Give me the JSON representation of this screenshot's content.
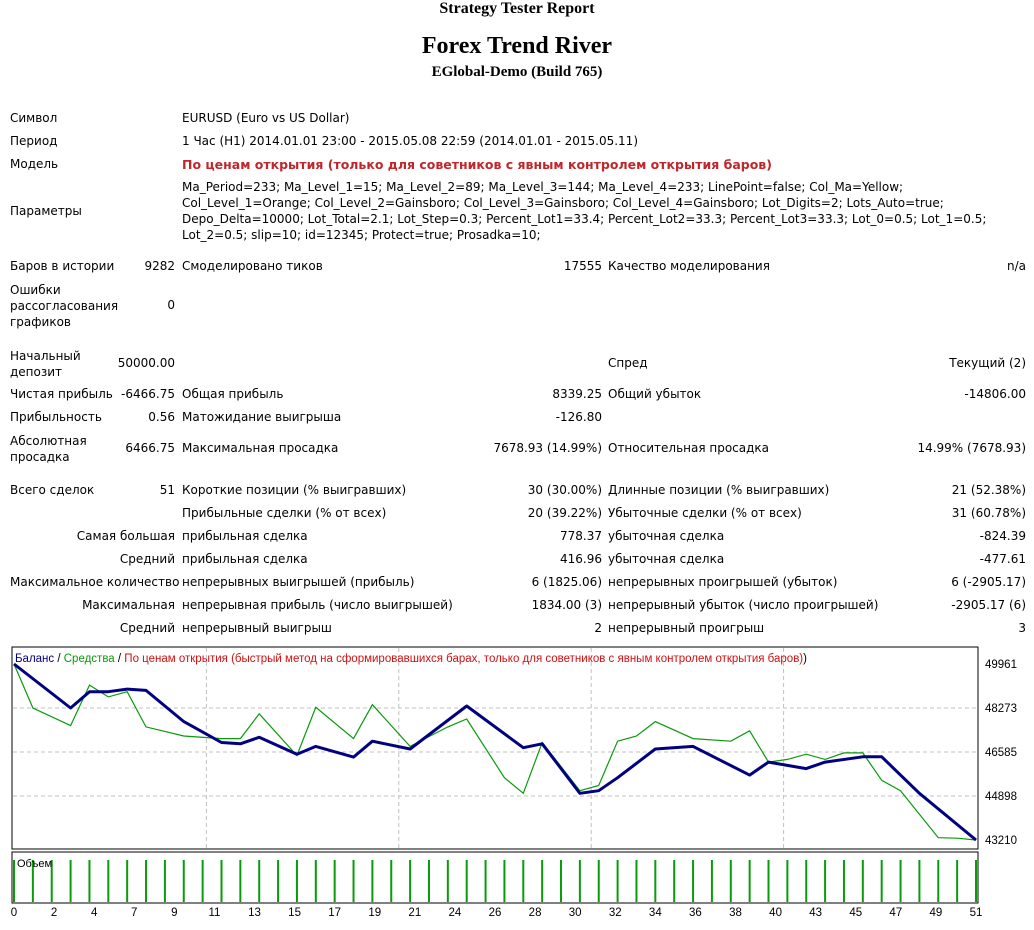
{
  "header": {
    "title": "Strategy Tester Report",
    "expert": "Forex Trend River",
    "server": "EGlobal-Demo (Build 765)"
  },
  "info": {
    "symbol_label": "Символ",
    "symbol_value": "EURUSD (Euro vs US Dollar)",
    "period_label": "Период",
    "period_value": "1 Час (H1) 2014.01.01 23:00 - 2015.05.08 22:59 (2014.01.01 - 2015.05.11)",
    "model_label": "Модель",
    "model_value": "По ценам открытия (только для советников с явным контролем открытия баров)",
    "params_label": "Параметры",
    "params_lines": [
      "Ma_Period=233; Ma_Level_1=15; Ma_Level_2=89; Ma_Level_3=144; Ma_Level_4=233; LinePoint=false; Col_Ma=Yellow;",
      "Col_Level_1=Orange; Col_Level_2=Gainsboro; Col_Level_3=Gainsboro; Col_Level_4=Gainsboro; Lot_Digits=2; Lots_Auto=true;",
      "Depo_Delta=10000; Lot_Total=2.1; Lot_Step=0.3; Percent_Lot1=33.4; Percent_Lot2=33.3; Percent_Lot3=33.3; Lot_0=0.5; Lot_1=0.5;",
      "Lot_2=0.5; slip=10; id=12345; Protect=true; Prosadka=10;"
    ]
  },
  "stats": {
    "bars_label": "Баров в истории",
    "bars_value": "9282",
    "ticks_label": "Смоделировано тиков",
    "ticks_value": "17555",
    "quality_label": "Качество моделирования",
    "quality_value": "n/a",
    "mismatch_label": "Ошибки рассогласования графиков",
    "mismatch_value": "0",
    "deposit_label": "Начальный депозит",
    "deposit_value": "50000.00",
    "spread_label": "Спред",
    "spread_value": "Текущий (2)",
    "net_label": "Чистая прибыль",
    "net_value": "-6466.75",
    "gross_profit_label": "Общая прибыль",
    "gross_profit_value": "8339.25",
    "gross_loss_label": "Общий убыток",
    "gross_loss_value": "-14806.00",
    "pf_label": "Прибыльность",
    "pf_value": "0.56",
    "payoff_label": "Матожидание выигрыша",
    "payoff_value": "-126.80",
    "abs_dd_label": "Абсолютная просадка",
    "abs_dd_value": "6466.75",
    "max_dd_label": "Максимальная просадка",
    "max_dd_value": "7678.93 (14.99%)",
    "rel_dd_label": "Относительная просадка",
    "rel_dd_value": "14.99% (7678.93)",
    "total_trades_label": "Всего сделок",
    "total_trades_value": "51",
    "short_label": "Короткие позиции (% выигравших)",
    "short_value": "30 (30.00%)",
    "long_label": "Длинные позиции (% выигравших)",
    "long_value": "21 (52.38%)",
    "profit_trades_label": "Прибыльные сделки (% от всех)",
    "profit_trades_value": "20 (39.22%)",
    "loss_trades_label": "Убыточные сделки (% от всех)",
    "loss_trades_value": "31 (60.78%)",
    "largest_label": "Самая большая",
    "largest_profit_label": "прибыльная сделка",
    "largest_profit_value": "778.37",
    "largest_loss_label": "убыточная сделка",
    "largest_loss_value": "-824.39",
    "average_label": "Средний",
    "average_profit_label": "прибыльная сделка",
    "average_profit_value": "416.96",
    "average_loss_label": "убыточная сделка",
    "average_loss_value": "-477.61",
    "maxcount_label": "Максимальное количество",
    "maxcount_wins_label": "непрерывных выигрышей (прибыль)",
    "maxcount_wins_value": "6 (1825.06)",
    "maxcount_losses_label": "непрерывных проигрышей (убыток)",
    "maxcount_losses_value": "6 (-2905.17)",
    "maximal_label": "Максимальная",
    "maximal_profit_label": "непрерывная прибыль (число выигрышей)",
    "maximal_profit_value": "1834.00 (3)",
    "maximal_loss_label": "непрерывный убыток (число проигрышей)",
    "maximal_loss_value": "-2905.17 (6)",
    "avg_cons_label": "Средний",
    "avg_cons_wins_label": "непрерывный выигрыш",
    "avg_cons_wins_value": "2",
    "avg_cons_losses_label": "непрерывный проигрыш",
    "avg_cons_losses_value": "3"
  },
  "colors": {
    "balance": "#000080",
    "equity": "#0a9a0a",
    "model": "#d01010",
    "grid": "#c0c0c0",
    "volume": "#0a9a0a"
  },
  "chart_data": {
    "type": "line",
    "legend": {
      "balance": "Баланс",
      "equity": "Средства",
      "model": "По ценам открытия (быстрый метод на сформировавшихся барах, только для советников с явным контролем открытия баров)"
    },
    "volume_label": "Объем",
    "y_ticks": [
      49961,
      48273,
      46585,
      44898,
      43210
    ],
    "ylim": [
      43210,
      49961
    ],
    "x_ticks": [
      "0",
      "2",
      "4",
      "7",
      "9",
      "11",
      "13",
      "15",
      "17",
      "19",
      "21",
      "24",
      "26",
      "28",
      "30",
      "32",
      "34",
      "36",
      "38",
      "40",
      "43",
      "45",
      "47",
      "49",
      "51"
    ],
    "xlim": [
      0,
      51
    ],
    "series": [
      {
        "name": "Баланс",
        "x": [
          0,
          3,
          4,
          5,
          6,
          7,
          9,
          11,
          12,
          13,
          15,
          16,
          18,
          19,
          21,
          24,
          27,
          28,
          30,
          31,
          32,
          34,
          36,
          39,
          40,
          42,
          43,
          45,
          46,
          48,
          51
        ],
        "values": [
          49961,
          48273,
          48900,
          48900,
          49000,
          48950,
          47750,
          46950,
          46900,
          47150,
          46500,
          46800,
          46390,
          47000,
          46700,
          48350,
          46750,
          46900,
          45000,
          45100,
          45600,
          46700,
          46800,
          45700,
          46200,
          45950,
          46200,
          46400,
          46400,
          45000,
          43210
        ]
      },
      {
        "name": "Средства",
        "x": [
          0,
          1,
          3,
          4,
          5,
          6,
          7,
          9,
          11,
          12,
          13,
          15,
          16,
          18,
          19,
          21,
          23,
          24,
          26,
          27,
          28,
          30,
          31,
          32,
          33,
          34,
          36,
          38,
          39,
          40,
          41,
          42,
          43,
          44,
          45,
          46,
          47,
          49,
          50,
          51
        ],
        "values": [
          49961,
          48273,
          47600,
          49150,
          48700,
          48900,
          47550,
          47200,
          47100,
          47100,
          48050,
          46450,
          48300,
          47100,
          48400,
          46800,
          47550,
          47850,
          45600,
          45000,
          46950,
          45100,
          45300,
          47000,
          47200,
          47750,
          47100,
          47000,
          47400,
          46200,
          46300,
          46500,
          46300,
          46550,
          46550,
          45500,
          45100,
          43300,
          43280,
          43210
        ]
      }
    ]
  }
}
